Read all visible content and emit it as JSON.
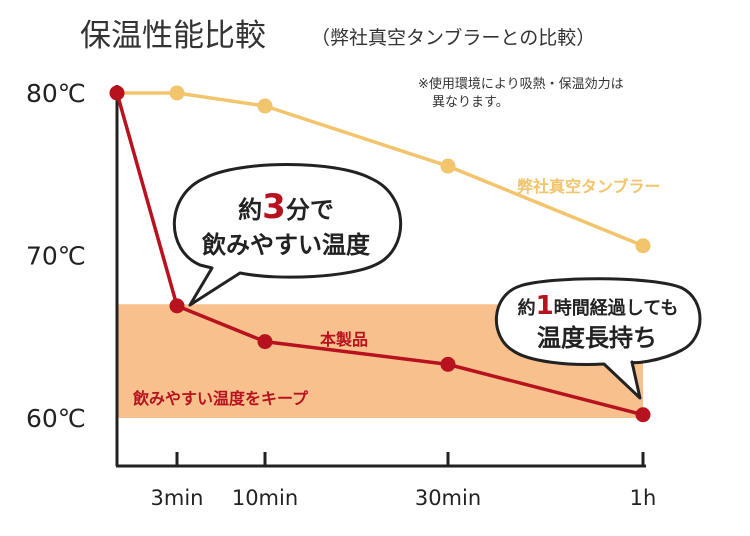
{
  "header": {
    "title": "保温性能比較",
    "subtitle": "（弊社真空タンブラーとの比較）"
  },
  "note": {
    "line1": "※使用環境により吸熱・保温効力は",
    "line2": "異なります。"
  },
  "colors": {
    "product": "#b8121e",
    "competitor": "#f2c46c",
    "band": "#f7c08c",
    "axis": "#222222"
  },
  "band": {
    "label": "飲みやすい温度をキープ",
    "range": [
      60,
      67
    ]
  },
  "bubbles": {
    "left": {
      "pre": "約",
      "num": "3",
      "mid": "分で",
      "line2": "飲みやすい温度"
    },
    "right": {
      "pre": "約",
      "num": "1",
      "mid": "時間経過しても",
      "line2": "温度長持ち"
    }
  },
  "chart_data": {
    "type": "line",
    "x": [
      0,
      3,
      10,
      30,
      60
    ],
    "xtick_labels": [
      "3min",
      "10min",
      "30min",
      "1h"
    ],
    "xtick_values": [
      3,
      10,
      30,
      60
    ],
    "yticks": [
      {
        "value": 80,
        "label": "80℃"
      },
      {
        "value": 70,
        "label": "70℃"
      },
      {
        "value": 60,
        "label": "60℃"
      }
    ],
    "ylim": [
      57,
      82
    ],
    "grid": false,
    "series": [
      {
        "name": "本製品",
        "values": [
          80,
          66.9,
          64.7,
          63.3,
          60.2
        ]
      },
      {
        "name": "弊社真空タンブラー",
        "values": [
          80,
          80,
          79.2,
          75.5,
          70.6
        ]
      }
    ]
  }
}
